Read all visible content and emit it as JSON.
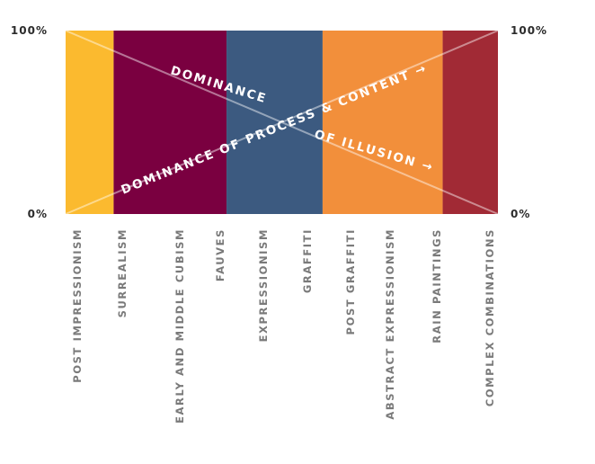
{
  "chart_data": {
    "type": "area",
    "categories": [
      "POST IMPRESSIONISM",
      "SURREALISM",
      "EARLY AND MIDDLE CUBISM",
      "FAUVES",
      "EXPRESSIONISM",
      "GRAFFITI",
      "POST GRAFFITI",
      "ABSTRACT EXPRESSIONISM",
      "RAIN PAINTINGS",
      "COMPLEX COMBINATIONS"
    ],
    "ylim": [
      0,
      100
    ],
    "y_ticks": [
      {
        "value": 100,
        "label": "100%"
      },
      {
        "value": 0,
        "label": "0%"
      }
    ],
    "bands": [
      {
        "from": 0.0,
        "to": 1.0,
        "color": "#FBBA2F"
      },
      {
        "from": 1.0,
        "to": 3.35,
        "color": "#7A0040"
      },
      {
        "from": 3.35,
        "to": 5.35,
        "color": "#3C5A80"
      },
      {
        "from": 5.35,
        "to": 7.85,
        "color": "#F28F3B"
      },
      {
        "from": 7.85,
        "to": 9.0,
        "color": "#A12A35"
      }
    ],
    "series": [
      {
        "values": [
          100,
          88.9,
          77.8,
          66.7,
          55.6,
          44.4,
          33.3,
          22.2,
          11.1,
          0
        ]
      },
      {
        "values": [
          0,
          11.1,
          22.2,
          33.3,
          44.4,
          55.6,
          66.7,
          77.8,
          88.9,
          100
        ]
      }
    ],
    "annotations": [
      {
        "text": "DOMINANCE"
      },
      {
        "text": "DOMINANCE OF PROCESS & CONTENT →"
      },
      {
        "text": "OF ILLUSION →"
      }
    ],
    "grid": false,
    "legend": "none"
  }
}
